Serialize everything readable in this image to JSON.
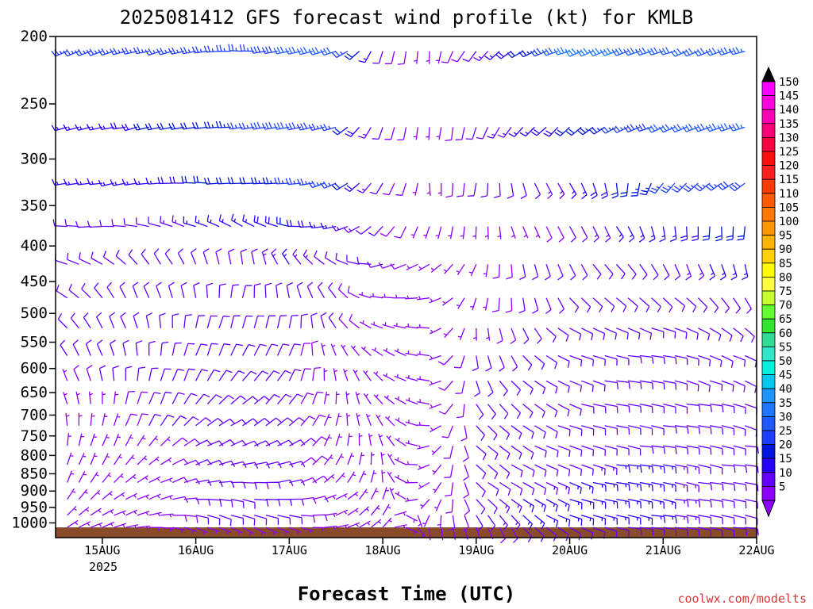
{
  "chart_data": {
    "type": "wind_profile",
    "title": "2025081412 GFS forecast wind profile (kt) for KMLB",
    "xlabel": "Forecast Time (UTC)",
    "credit": "coolwx.com/modelts",
    "x_ticks": [
      "15AUG",
      "16AUG",
      "17AUG",
      "18AUG",
      "19AUG",
      "20AUG",
      "21AUG",
      "22AUG"
    ],
    "x_year_label": "2025",
    "x_range": [
      "2025-08-14T12",
      "2025-08-22T00"
    ],
    "y_ticks": [
      200,
      250,
      300,
      350,
      400,
      450,
      500,
      550,
      600,
      650,
      700,
      750,
      800,
      850,
      900,
      950,
      1000
    ],
    "y_range": [
      200,
      1050
    ],
    "y_scale": "log",
    "y_unit": "hPa",
    "colorbar_labels": [
      150,
      145,
      140,
      135,
      130,
      125,
      120,
      115,
      110,
      105,
      100,
      95,
      90,
      85,
      80,
      75,
      70,
      65,
      60,
      55,
      50,
      45,
      40,
      35,
      30,
      25,
      20,
      15,
      10,
      5
    ],
    "colorbar_colors": [
      "#ff00ff",
      "#ff00e0",
      "#ff00b4",
      "#ff0078",
      "#ff0040",
      "#ff1010",
      "#ff2020",
      "#ff3c00",
      "#ff5a00",
      "#ff7800",
      "#ff9600",
      "#ffb400",
      "#ffd200",
      "#ffff00",
      "#ffff40",
      "#c8ff32",
      "#64ff32",
      "#32e632",
      "#32dc96",
      "#32e6c8",
      "#00f0dc",
      "#00c8f0",
      "#1e96ff",
      "#1e78ff",
      "#1e5aff",
      "#1e3cff",
      "#0014dc",
      "#2800ff",
      "#6400ff",
      "#8c00ff"
    ],
    "terrain_color": "#8a4b2a",
    "wind_levels_hPa": [
      210,
      270,
      325,
      375,
      425,
      475,
      525,
      575,
      625,
      675,
      725,
      775,
      825,
      875,
      925,
      975,
      1015
    ],
    "wind_direction_deg": [
      [
        250,
        250,
        255,
        260,
        270,
        260,
        250,
        200,
        180,
        220,
        240,
        250,
        250,
        250,
        250,
        255
      ],
      [
        255,
        255,
        260,
        260,
        265,
        260,
        250,
        200,
        180,
        200,
        220,
        230,
        240,
        250,
        250,
        250
      ],
      [
        260,
        260,
        265,
        270,
        270,
        265,
        250,
        210,
        180,
        190,
        160,
        150,
        170,
        220,
        230,
        240
      ],
      [
        270,
        270,
        280,
        290,
        300,
        280,
        260,
        220,
        200,
        180,
        160,
        150,
        150,
        170,
        180,
        190
      ],
      [
        290,
        300,
        320,
        340,
        350,
        330,
        300,
        260,
        240,
        200,
        170,
        150,
        140,
        150,
        160,
        170
      ],
      [
        300,
        320,
        340,
        350,
        10,
        350,
        320,
        280,
        260,
        200,
        170,
        140,
        130,
        130,
        140,
        150
      ],
      [
        310,
        330,
        350,
        10,
        20,
        10,
        330,
        290,
        270,
        180,
        150,
        120,
        110,
        110,
        120,
        130
      ],
      [
        320,
        340,
        0,
        20,
        30,
        20,
        340,
        300,
        280,
        170,
        140,
        110,
        100,
        100,
        110,
        120
      ],
      [
        330,
        350,
        10,
        30,
        40,
        30,
        350,
        310,
        280,
        160,
        130,
        110,
        100,
        100,
        110,
        120
      ],
      [
        340,
        0,
        20,
        40,
        50,
        40,
        0,
        320,
        280,
        150,
        130,
        110,
        100,
        100,
        100,
        110
      ],
      [
        350,
        10,
        30,
        50,
        60,
        50,
        10,
        330,
        270,
        140,
        120,
        110,
        100,
        100,
        100,
        110
      ],
      [
        0,
        20,
        40,
        60,
        70,
        60,
        20,
        340,
        260,
        130,
        120,
        110,
        100,
        100,
        100,
        100
      ],
      [
        10,
        30,
        50,
        70,
        80,
        70,
        30,
        350,
        250,
        130,
        120,
        110,
        100,
        100,
        100,
        100
      ],
      [
        20,
        40,
        60,
        80,
        90,
        80,
        40,
        0,
        240,
        130,
        120,
        110,
        100,
        100,
        100,
        100
      ],
      [
        30,
        50,
        70,
        90,
        100,
        90,
        60,
        20,
        220,
        140,
        120,
        110,
        100,
        100,
        100,
        100
      ],
      [
        40,
        60,
        80,
        100,
        110,
        100,
        70,
        30,
        200,
        150,
        130,
        110,
        100,
        100,
        100,
        100
      ],
      [
        50,
        70,
        90,
        110,
        120,
        110,
        80,
        40,
        180,
        160,
        140,
        120,
        100,
        100,
        100,
        100
      ]
    ],
    "wind_speed_kt": [
      [
        25,
        25,
        25,
        25,
        25,
        30,
        30,
        10,
        5,
        10,
        20,
        35,
        35,
        30,
        30,
        35
      ],
      [
        15,
        15,
        20,
        20,
        25,
        30,
        25,
        10,
        5,
        10,
        15,
        20,
        25,
        30,
        30,
        35
      ],
      [
        15,
        15,
        15,
        20,
        20,
        25,
        25,
        10,
        5,
        10,
        10,
        15,
        20,
        25,
        25,
        30
      ],
      [
        10,
        10,
        10,
        15,
        15,
        20,
        15,
        10,
        5,
        5,
        5,
        10,
        15,
        15,
        20,
        20
      ],
      [
        10,
        10,
        10,
        10,
        10,
        15,
        10,
        10,
        5,
        5,
        10,
        10,
        10,
        10,
        15,
        15
      ],
      [
        10,
        10,
        10,
        10,
        10,
        10,
        10,
        5,
        5,
        5,
        10,
        10,
        10,
        10,
        10,
        10
      ],
      [
        10,
        10,
        10,
        10,
        10,
        10,
        10,
        5,
        5,
        5,
        10,
        10,
        10,
        10,
        10,
        10
      ],
      [
        10,
        10,
        10,
        10,
        10,
        10,
        5,
        5,
        5,
        10,
        10,
        10,
        10,
        10,
        10,
        10
      ],
      [
        5,
        10,
        10,
        10,
        10,
        10,
        5,
        5,
        5,
        10,
        10,
        10,
        10,
        10,
        10,
        10
      ],
      [
        5,
        5,
        10,
        10,
        10,
        10,
        5,
        5,
        5,
        10,
        10,
        10,
        10,
        10,
        10,
        10
      ],
      [
        5,
        5,
        10,
        10,
        10,
        10,
        5,
        5,
        5,
        10,
        10,
        10,
        10,
        10,
        10,
        10
      ],
      [
        5,
        5,
        5,
        10,
        10,
        10,
        5,
        5,
        5,
        10,
        10,
        10,
        10,
        10,
        10,
        10
      ],
      [
        5,
        5,
        5,
        10,
        10,
        10,
        5,
        5,
        5,
        10,
        10,
        10,
        15,
        15,
        10,
        10
      ],
      [
        5,
        5,
        5,
        10,
        10,
        10,
        5,
        5,
        5,
        10,
        10,
        15,
        15,
        15,
        10,
        10
      ],
      [
        5,
        5,
        5,
        10,
        10,
        10,
        5,
        5,
        5,
        10,
        15,
        15,
        15,
        15,
        10,
        10
      ],
      [
        5,
        5,
        5,
        10,
        10,
        10,
        5,
        5,
        5,
        10,
        15,
        15,
        15,
        15,
        10,
        10
      ],
      [
        5,
        5,
        5,
        5,
        5,
        5,
        5,
        5,
        5,
        5,
        10,
        10,
        10,
        10,
        10,
        10
      ]
    ]
  }
}
